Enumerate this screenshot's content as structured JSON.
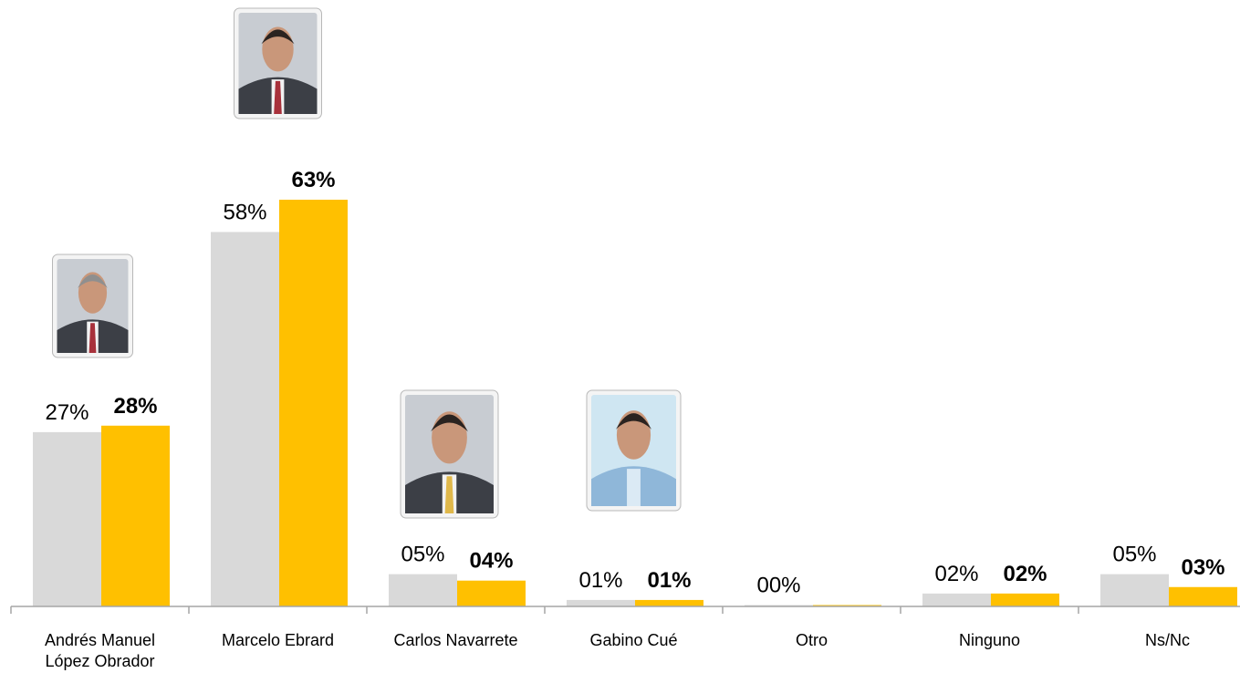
{
  "chart_data": {
    "type": "bar",
    "categories": [
      [
        "Andrés Manuel",
        "López Obrador"
      ],
      [
        "Marcelo Ebrard"
      ],
      [
        "Carlos Navarrete"
      ],
      [
        "Gabino Cué"
      ],
      [
        "Otro"
      ],
      [
        "Ninguno"
      ],
      [
        "Ns/Nc"
      ]
    ],
    "series": [
      {
        "color": "#d9d9d9",
        "values": [
          27,
          58,
          5,
          1,
          0,
          2,
          5
        ],
        "labels": [
          "27%",
          "58%",
          "05%",
          "01%",
          "00%",
          "02%",
          "05%"
        ],
        "bold": false
      },
      {
        "color": "#ffc000",
        "values": [
          28,
          63,
          4,
          1,
          0,
          2,
          3
        ],
        "labels": [
          "28%",
          "63%",
          "04%",
          "01%",
          "",
          "02%",
          "03%"
        ],
        "bold": true
      }
    ],
    "ylim": [
      0,
      63
    ],
    "photos": [
      {
        "category_index": 0,
        "icon": "portrait-photo"
      },
      {
        "category_index": 1,
        "icon": "portrait-photo"
      },
      {
        "category_index": 2,
        "icon": "portrait-photo"
      },
      {
        "category_index": 3,
        "icon": "portrait-photo"
      }
    ]
  }
}
